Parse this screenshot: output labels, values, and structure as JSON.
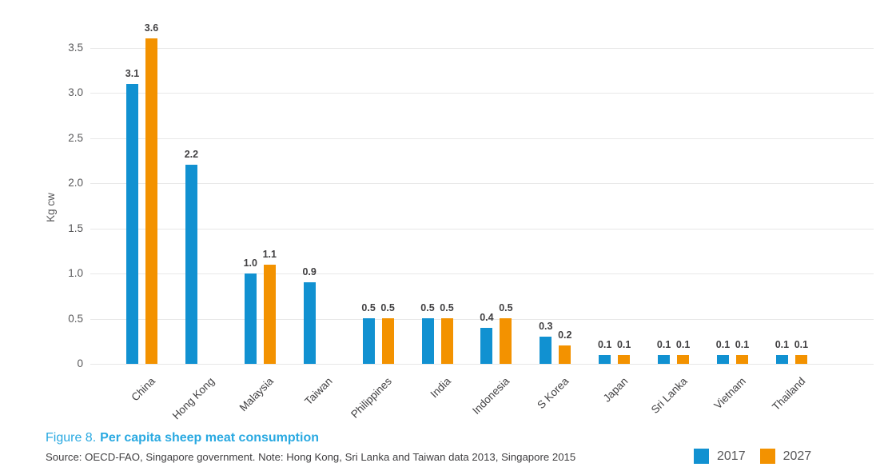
{
  "figure": {
    "caption_prefix": "Figure 8.",
    "caption_title": "Per capita sheep meat consumption",
    "source_note": "Source: OECD-FAO, Singapore government. Note: Hong Kong, Sri Lanka and Taiwan data 2013, Singapore 2015"
  },
  "colors": {
    "series_2017": "#1191D1",
    "series_2027": "#F39200",
    "caption_blue": "#29A9E1",
    "axis_text": "#58585A",
    "label_text": "#414042",
    "gridline": "#E8E8E8"
  },
  "chart_data": {
    "type": "bar",
    "title": "Per capita sheep meat consumption",
    "xlabel": "",
    "ylabel": "Kg cw",
    "ylim": [
      0,
      3.75
    ],
    "grid": "horizontal",
    "legend_position": "bottom-right",
    "ytick_values": [
      0,
      0.5,
      1.0,
      1.5,
      2.0,
      2.5,
      3.0,
      3.5
    ],
    "ytick_labels": [
      "0",
      "0.5",
      "1.0",
      "1.5",
      "2.0",
      "2.5",
      "3.0",
      "3.5"
    ],
    "categories": [
      "China",
      "Hong Kong",
      "Malaysia",
      "Taiwan",
      "Philippines",
      "India",
      "Indonesia",
      "S Korea",
      "Japan",
      "Sri Lanka",
      "Vietnam",
      "Thailand"
    ],
    "series": [
      {
        "name": "2017",
        "color": "#1191D1",
        "values": [
          3.1,
          2.2,
          1.0,
          0.9,
          0.5,
          0.5,
          0.4,
          0.3,
          0.1,
          0.1,
          0.1,
          0.1
        ]
      },
      {
        "name": "2027",
        "color": "#F39200",
        "values": [
          3.6,
          null,
          1.1,
          null,
          0.5,
          0.5,
          0.5,
          0.2,
          0.1,
          0.1,
          0.1,
          0.1
        ]
      }
    ]
  },
  "legend": {
    "items": [
      {
        "label": "2017",
        "color": "#1191D1"
      },
      {
        "label": "2027",
        "color": "#F39200"
      }
    ]
  }
}
